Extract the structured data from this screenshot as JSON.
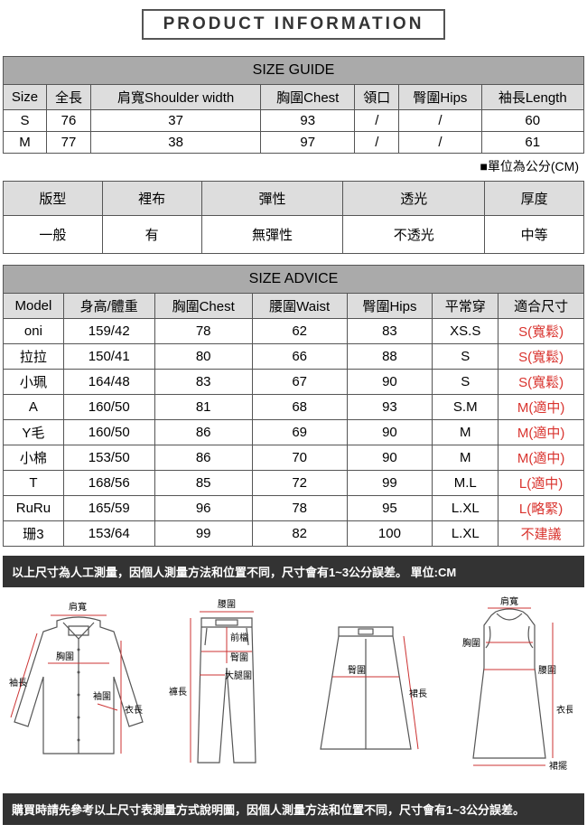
{
  "title": "PRODUCT INFORMATION",
  "sizeGuide": {
    "header": "SIZE GUIDE",
    "cols": [
      "Size",
      "全長",
      "肩寬Shoulder width",
      "胸圍Chest",
      "領口",
      "臀圍Hips",
      "袖長Length"
    ],
    "rows": [
      [
        "S",
        "76",
        "37",
        "93",
        "/",
        "/",
        "60"
      ],
      [
        "M",
        "77",
        "38",
        "97",
        "/",
        "/",
        "61"
      ]
    ],
    "note": "■單位為公分(CM)"
  },
  "fabric": {
    "cols": [
      "版型",
      "裡布",
      "彈性",
      "透光",
      "厚度"
    ],
    "vals": [
      "一般",
      "有",
      "無彈性",
      "不透光",
      "中等"
    ]
  },
  "advice": {
    "header": "SIZE ADVICE",
    "cols": [
      "Model",
      "身高/體重",
      "胸圍Chest",
      "腰圍Waist",
      "臀圍Hips",
      "平常穿",
      "適合尺寸"
    ],
    "rows": [
      {
        "c": [
          "oni",
          "159/42",
          "78",
          "62",
          "83",
          "XS.S"
        ],
        "fit": "S(寬鬆)"
      },
      {
        "c": [
          "拉拉",
          "150/41",
          "80",
          "66",
          "88",
          "S"
        ],
        "fit": "S(寬鬆)"
      },
      {
        "c": [
          "小珮",
          "164/48",
          "83",
          "67",
          "90",
          "S"
        ],
        "fit": "S(寬鬆)"
      },
      {
        "c": [
          "A",
          "160/50",
          "81",
          "68",
          "93",
          "S.M"
        ],
        "fit": "M(適中)"
      },
      {
        "c": [
          "Y毛",
          "160/50",
          "86",
          "69",
          "90",
          "M"
        ],
        "fit": "M(適中)"
      },
      {
        "c": [
          "小棉",
          "153/50",
          "86",
          "70",
          "90",
          "M"
        ],
        "fit": "M(適中)"
      },
      {
        "c": [
          "T",
          "168/56",
          "85",
          "72",
          "99",
          "M.L"
        ],
        "fit": "L(適中)"
      },
      {
        "c": [
          "RuRu",
          "165/59",
          "96",
          "78",
          "95",
          "L.XL"
        ],
        "fit": "L(略緊)"
      },
      {
        "c": [
          "珊3",
          "153/64",
          "99",
          "82",
          "100",
          "L.XL"
        ],
        "fit": "不建議"
      }
    ]
  },
  "diagram": {
    "topText": "以上尺寸為人工測量，因個人測量方法和位置不同，尺寸會有1~3公分誤差。 單位:CM",
    "bottomText": "購買時請先參考以上尺寸表測量方式說明圖，因個人測量方法和位置不同，尺寸會有1~3公分誤差。",
    "labels": {
      "shoulder": "肩寬",
      "chest": "胸圍",
      "sleeve": "袖長",
      "cuffW": "袖圍",
      "length": "衣長",
      "waist": "腰圍",
      "frontRise": "前檔",
      "hip2": "臀圍",
      "thigh": "大腿圍",
      "pantL": "褲長",
      "skirtHip": "臀圍",
      "skirtL": "裙長",
      "dressWaist": "腰圍",
      "dressL": "衣長",
      "hem": "裙擺"
    }
  }
}
